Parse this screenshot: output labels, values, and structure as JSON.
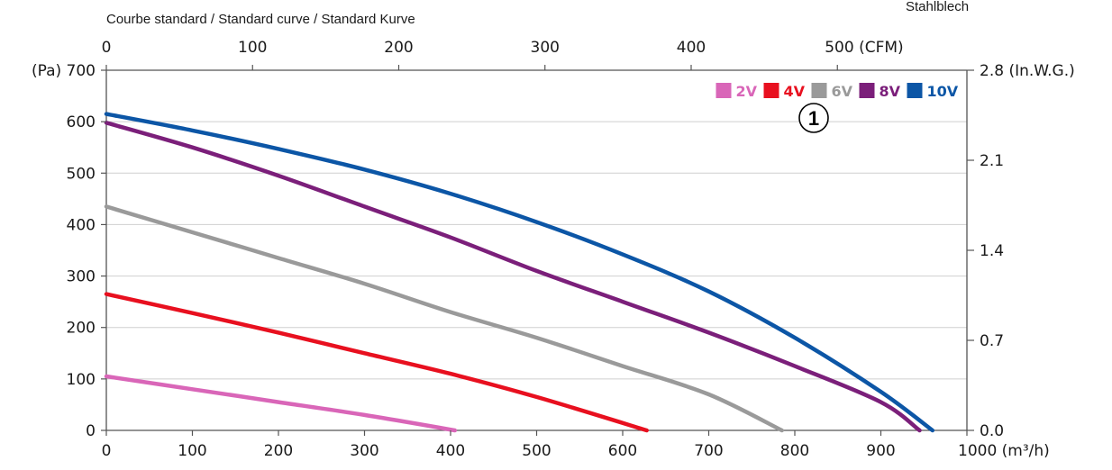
{
  "header": {
    "caption": "Courbe standard / Standard curve / Standard Kurve",
    "corner_note": "Stahlblech"
  },
  "marker": {
    "label": "1"
  },
  "chart_data": {
    "type": "line",
    "xlabel": "(m³/h)",
    "ylabel": "(Pa)",
    "xlim": [
      0,
      1000
    ],
    "ylim": [
      0,
      700
    ],
    "x_ticks": [
      "0",
      "100",
      "200",
      "300",
      "400",
      "500",
      "600",
      "700",
      "800",
      "900",
      "1000 (m³/h)"
    ],
    "y_ticks": [
      "0",
      "100",
      "200",
      "300",
      "400",
      "500",
      "600",
      "(Pa) 700"
    ],
    "top_axis": {
      "label": "(CFM)",
      "ticks": [
        "0",
        "100",
        "200",
        "300",
        "400",
        "500 (CFM)"
      ],
      "values": [
        0,
        100,
        200,
        300,
        400,
        500
      ],
      "cfm_per_m3h": 0.5886
    },
    "right_axis": {
      "label": "(In.W.G.)",
      "ticks": [
        "0.0",
        "0.7",
        "1.4",
        "2.1",
        "2.8 (In.W.G.)"
      ],
      "values": [
        0.0,
        0.7,
        1.4,
        2.1,
        2.8
      ],
      "inwg_max": 2.8
    },
    "grid": true,
    "legend_position": "top-right",
    "series": [
      {
        "name": "2V",
        "color": "#d966b8",
        "x": [
          0,
          100,
          200,
          300,
          405
        ],
        "y": [
          105,
          80,
          55,
          30,
          0
        ]
      },
      {
        "name": "4V",
        "color": "#e8101f",
        "x": [
          0,
          100,
          200,
          300,
          400,
          500,
          628
        ],
        "y": [
          265,
          228,
          190,
          150,
          110,
          65,
          0
        ]
      },
      {
        "name": "6V",
        "color": "#9a9a9a",
        "x": [
          0,
          100,
          200,
          300,
          400,
          500,
          600,
          700,
          785
        ],
        "y": [
          435,
          385,
          335,
          285,
          230,
          180,
          125,
          70,
          0
        ]
      },
      {
        "name": "8V",
        "color": "#7b1f7a",
        "x": [
          0,
          100,
          200,
          300,
          400,
          500,
          600,
          700,
          800,
          900,
          945
        ],
        "y": [
          598,
          550,
          495,
          435,
          375,
          310,
          250,
          190,
          125,
          55,
          0
        ]
      },
      {
        "name": "10V",
        "color": "#0c56a6",
        "x": [
          0,
          100,
          200,
          300,
          400,
          500,
          600,
          700,
          800,
          900,
          960
        ],
        "y": [
          615,
          583,
          547,
          507,
          460,
          405,
          342,
          270,
          180,
          75,
          0
        ]
      }
    ]
  }
}
